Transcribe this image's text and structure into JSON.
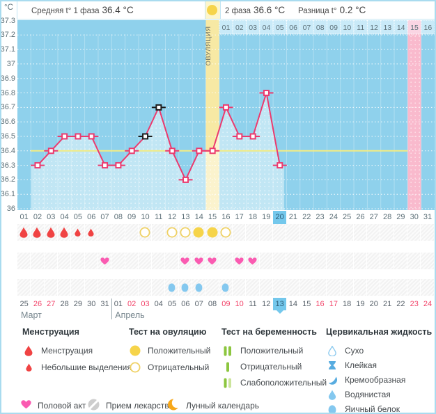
{
  "header": {
    "unit": "°C",
    "avg_label": "Средняя t° 1 фаза",
    "avg_value": "36.4 °C",
    "phase2_label": "2 фаза",
    "phase2_value": "36.6 °C",
    "diff_label": "Разница t°",
    "diff_value": "0.2 °C"
  },
  "chart_data": {
    "type": "line",
    "ylabel": "°C",
    "ylim": [
      36,
      37.3
    ],
    "yticks": [
      "37.3",
      "37.2",
      "37.1",
      "37",
      "36.9",
      "36.8",
      "36.7",
      "36.6",
      "36.5",
      "36.4",
      "36.3",
      "36.2",
      "36.1",
      "36"
    ],
    "x_days": [
      "01",
      "02",
      "03",
      "04",
      "05",
      "06",
      "07",
      "08",
      "09",
      "10",
      "11",
      "12",
      "13",
      "14",
      "15",
      "16",
      "17",
      "18",
      "19",
      "20",
      "21",
      "22",
      "23",
      "24",
      "25",
      "26",
      "27",
      "28",
      "29",
      "30",
      "31"
    ],
    "temps": [
      null,
      36.3,
      36.4,
      36.5,
      36.5,
      36.5,
      36.3,
      36.3,
      36.4,
      36.5,
      36.7,
      36.4,
      36.2,
      36.4,
      36.4,
      36.7,
      36.5,
      36.5,
      36.8,
      36.3,
      null,
      null,
      null,
      null,
      null,
      null,
      null,
      null,
      null,
      null,
      null
    ],
    "special_marker_days": [
      10,
      11
    ],
    "coverline": 36.4,
    "ovulation_day": 15,
    "ovulation_label": "ОВУЛЯЦИЯ",
    "expected_period_day": 30,
    "today_cycle_day": 20,
    "post_ovulation_row": {
      "start_day": 16,
      "labels": [
        "01",
        "02",
        "03",
        "04",
        "05",
        "06",
        "07",
        "08",
        "09",
        "10",
        "11",
        "12",
        "13",
        "14",
        "15",
        "16"
      ],
      "highlighted_label": "15"
    },
    "grid": true
  },
  "events": {
    "menstruation": [
      {
        "day": 1,
        "size": "big"
      },
      {
        "day": 2,
        "size": "big"
      },
      {
        "day": 3,
        "size": "big"
      },
      {
        "day": 4,
        "size": "big"
      },
      {
        "day": 5,
        "size": "small"
      },
      {
        "day": 6,
        "size": "small"
      }
    ],
    "ovulation_tests": [
      {
        "day": 10,
        "result": "negative"
      },
      {
        "day": 12,
        "result": "negative"
      },
      {
        "day": 13,
        "result": "negative"
      },
      {
        "day": 14,
        "result": "positive"
      },
      {
        "day": 15,
        "result": "positive"
      },
      {
        "day": 16,
        "result": "negative"
      }
    ],
    "intercourse_days": [
      7,
      13,
      14,
      15,
      17,
      18
    ],
    "cervical_fluid_days": [
      12,
      13,
      14,
      16
    ]
  },
  "calendar": {
    "months": [
      {
        "name": "Март",
        "days": [
          {
            "label": "25"
          },
          {
            "label": "26",
            "red": true
          },
          {
            "label": "27",
            "red": true
          },
          {
            "label": "28"
          },
          {
            "label": "29"
          },
          {
            "label": "30"
          },
          {
            "label": "31"
          }
        ]
      },
      {
        "name": "Апрель",
        "days": [
          {
            "label": "01"
          },
          {
            "label": "02",
            "red": true
          },
          {
            "label": "03",
            "red": true
          },
          {
            "label": "04"
          },
          {
            "label": "05"
          },
          {
            "label": "06"
          },
          {
            "label": "07"
          },
          {
            "label": "08"
          },
          {
            "label": "09",
            "red": true
          },
          {
            "label": "10",
            "red": true
          },
          {
            "label": "11"
          },
          {
            "label": "12"
          },
          {
            "label": "13",
            "today": true
          },
          {
            "label": "14"
          },
          {
            "label": "15"
          },
          {
            "label": "16",
            "red": true
          },
          {
            "label": "17",
            "red": true
          },
          {
            "label": "18"
          },
          {
            "label": "19"
          },
          {
            "label": "20"
          },
          {
            "label": "21"
          },
          {
            "label": "22"
          },
          {
            "label": "23",
            "red": true
          },
          {
            "label": "24",
            "red": true
          }
        ]
      }
    ]
  },
  "legend": {
    "sections": [
      {
        "title": "Менструация",
        "items": [
          {
            "icon": "drop-red-big",
            "label": "Менструация"
          },
          {
            "icon": "drop-red-small",
            "label": "Небольшие выделения"
          }
        ]
      },
      {
        "title": "Тест на овуляцию",
        "items": [
          {
            "icon": "circle-yellow-filled",
            "label": "Положительный"
          },
          {
            "icon": "circle-yellow-outline",
            "label": "Отрицательный"
          }
        ]
      },
      {
        "title": "Тест на беременность",
        "items": [
          {
            "icon": "bars-positive",
            "label": "Положительный"
          },
          {
            "icon": "bars-negative",
            "label": "Отрицательный"
          },
          {
            "icon": "bars-weak",
            "label": "Слабоположительный"
          }
        ]
      },
      {
        "title": "Цервикальная жидкость",
        "items": [
          {
            "icon": "drop-outline-blue",
            "label": "Сухо"
          },
          {
            "icon": "hourglass-blue",
            "label": "Клейкая"
          },
          {
            "icon": "comma-blue",
            "label": "Кремообразная"
          },
          {
            "icon": "drop-blue",
            "label": "Водянистая"
          },
          {
            "icon": "egg-blue",
            "label": "Яичный белок"
          }
        ]
      }
    ],
    "bottom": [
      {
        "icon": "heart-pink",
        "label": "Половой акт"
      },
      {
        "icon": "pill-gray",
        "label": "Прием лекарств"
      },
      {
        "icon": "moon-orange",
        "label": "Лунный календарь"
      }
    ]
  },
  "colors": {
    "plot_bg": "#8FD1EC",
    "fill_under_line": "rgba(255,255,255,0.45)",
    "line": "#EC3A6E",
    "special_marker": "#1b1b1b",
    "coverline": "#F3EC82",
    "ovulation_band": "#F7E9A4",
    "period_band": "#F9BACD",
    "period_cell": "#FAD5E3",
    "day_cell": "#C9EAF8",
    "today_highlight": "#74C8EC",
    "red_date": "#F24369",
    "menses_drop": "#F04343",
    "test_yellow": "#F6D44A",
    "test_yellow_outline": "#EFD164",
    "heart": "#FA5BB1",
    "cervical_blue": "#84C8EF",
    "cervical_dark_blue": "#58ACE0",
    "green_bar": "#8CC63F",
    "green_bar_pale": "#CBE49B",
    "moon": "#F7A81B",
    "pill": "#CDCDCD"
  }
}
